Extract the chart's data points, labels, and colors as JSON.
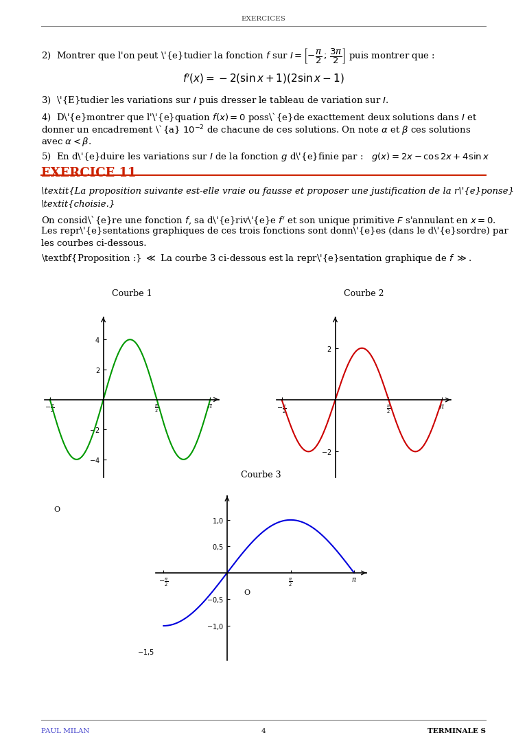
{
  "page_title": "EXERCICES",
  "footer_left": "PAUL MILAN",
  "footer_center": "4",
  "footer_right": "TERMINALE S",
  "background_color": "#ffffff",
  "text_color": "#000000",
  "footer_left_color": "#4444cc",
  "exercise_color": "#cc2200",
  "exercise_title": "EXERCICE 11",
  "curve1_color": "#009900",
  "curve2_color": "#cc0000",
  "curve3_color": "#0000dd",
  "curve1_title": "Courbe 1",
  "curve2_title": "Courbe 2",
  "curve3_title": "Courbe 3",
  "pi": 3.141592653589793
}
